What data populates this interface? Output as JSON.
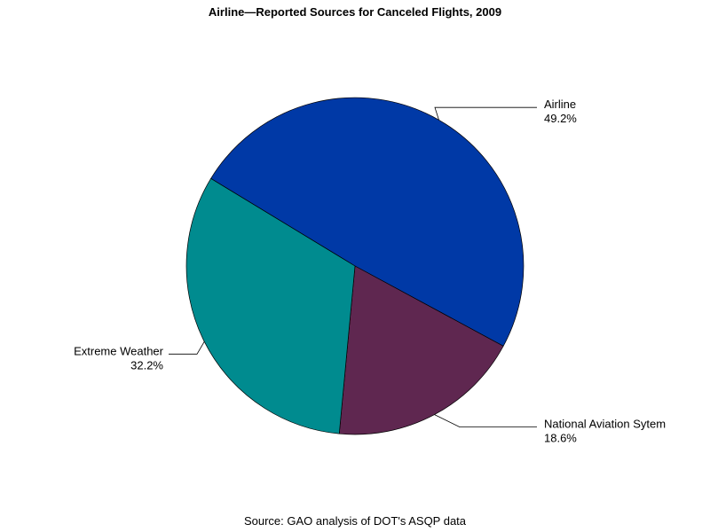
{
  "chart_data": {
    "type": "pie",
    "title": "Airline—Reported Sources for Canceled Flights, 2009",
    "source": "Source: GAO analysis of DOT's ASQP data",
    "slices": [
      {
        "label": "Airline",
        "value": 49.2,
        "value_label": "49.2%",
        "color": "#0039a6"
      },
      {
        "label": "National Aviation Sytem",
        "value": 18.6,
        "value_label": "18.6%",
        "color": "#5f2750"
      },
      {
        "label": "Extreme Weather",
        "value": 32.2,
        "value_label": "32.2%",
        "color": "#008b8f"
      }
    ]
  }
}
